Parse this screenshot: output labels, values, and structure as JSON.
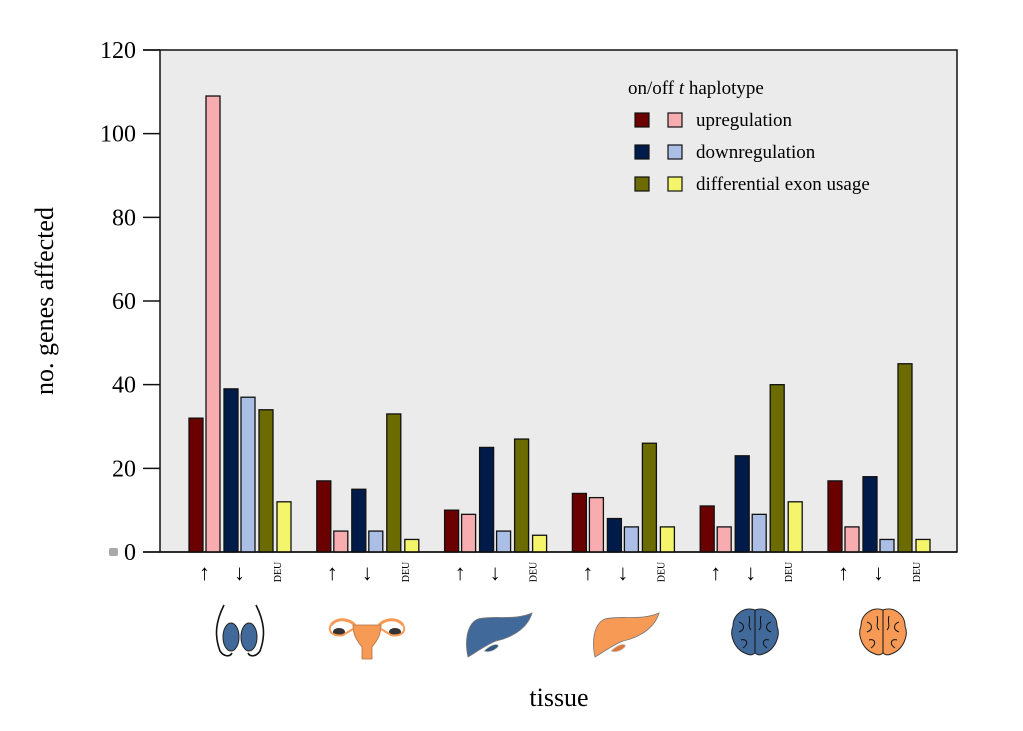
{
  "chart_data": {
    "type": "bar",
    "title": "",
    "xlabel": "tissue",
    "ylabel": "no. genes affected",
    "ylim": [
      0,
      120
    ],
    "yticks": [
      0,
      20,
      40,
      60,
      80,
      100,
      120
    ],
    "grid": false,
    "legend": {
      "title_pre": "on/off ",
      "title_italic": "t",
      "title_post": " haplotype",
      "placement": "top-right",
      "entries": [
        {
          "label": "upregulation",
          "colors": [
            "#6b0000",
            "#f7adb0"
          ]
        },
        {
          "label": "downregulation",
          "colors": [
            "#001a4a",
            "#aabee6"
          ]
        },
        {
          "label": "differential exon usage",
          "colors": [
            "#6b6b00",
            "#f5f56b"
          ]
        }
      ]
    },
    "categories": [
      "testis",
      "ovary",
      "liver (on)",
      "liver (off)",
      "brain (on)",
      "brain (off)"
    ],
    "category_icons": [
      "testis-icon",
      "ovary-uterus-icon",
      "liver-blue-icon",
      "liver-orange-icon",
      "brain-blue-icon",
      "brain-orange-icon"
    ],
    "subgroup_labels": [
      "↑",
      "↓",
      "DEU"
    ],
    "series": [
      {
        "name": "upregulation (on)",
        "color": "#6b0000",
        "values": [
          32,
          17,
          10,
          14,
          11,
          17
        ]
      },
      {
        "name": "upregulation (off)",
        "color": "#f7adb0",
        "values": [
          109,
          5,
          9,
          13,
          6,
          6
        ]
      },
      {
        "name": "downregulation (on)",
        "color": "#001a4a",
        "values": [
          39,
          15,
          25,
          8,
          23,
          18
        ]
      },
      {
        "name": "downregulation (off)",
        "color": "#aabee6",
        "values": [
          37,
          5,
          5,
          6,
          9,
          3
        ]
      },
      {
        "name": "differential exon usage (on)",
        "color": "#6b6b00",
        "values": [
          34,
          33,
          27,
          26,
          40,
          45
        ]
      },
      {
        "name": "differential exon usage (off)",
        "color": "#f5f56b",
        "values": [
          12,
          3,
          4,
          6,
          12,
          3
        ]
      }
    ],
    "colors": {
      "plot_background": "#ebebeb",
      "icon_blue": "#41699a",
      "icon_orange": "#f79a55"
    }
  }
}
